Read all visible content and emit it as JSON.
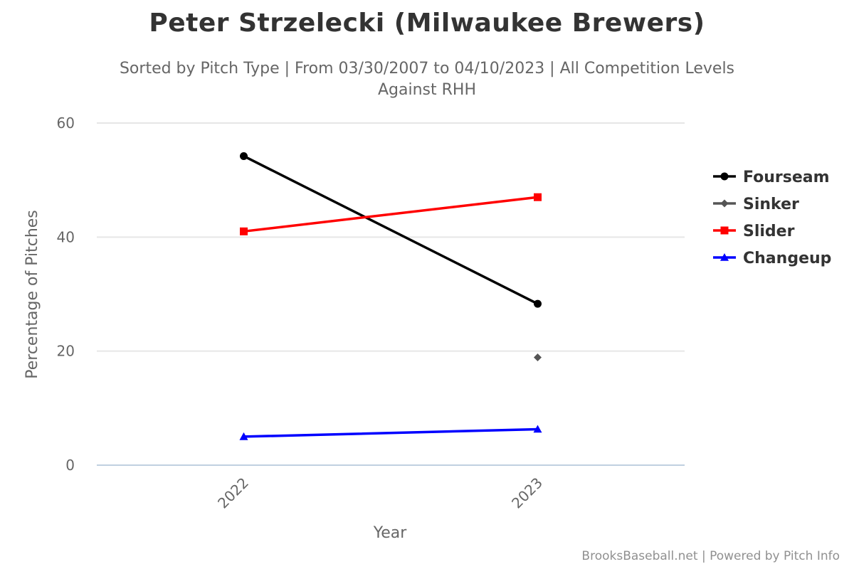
{
  "title": "Peter Strzelecki (Milwaukee Brewers)",
  "subtitle_line1": "Sorted by Pitch Type | From 03/30/2007 to 04/10/2023 | All Competition Levels",
  "subtitle_line2": "Against RHH",
  "credits": "BrooksBaseball.net | Powered by Pitch Info",
  "chart_data": {
    "type": "line",
    "x": [
      "2022",
      "2023"
    ],
    "xlabel": "Year",
    "ylabel": "Percentage of Pitches",
    "ylim": [
      0,
      60
    ],
    "yticks": [
      0,
      20,
      40,
      60
    ],
    "grid": true,
    "legend_position": "right",
    "series": [
      {
        "name": "Fourseam",
        "color": "#000000",
        "marker": "circle",
        "values": [
          54.2,
          28.3
        ]
      },
      {
        "name": "Sinker",
        "color": "#555555",
        "marker": "diamond",
        "values": [
          null,
          18.9
        ]
      },
      {
        "name": "Slider",
        "color": "#ff0000",
        "marker": "square",
        "values": [
          41.0,
          47.0
        ]
      },
      {
        "name": "Changeup",
        "color": "#0000ff",
        "marker": "triangle",
        "values": [
          5.0,
          6.3
        ]
      }
    ]
  }
}
